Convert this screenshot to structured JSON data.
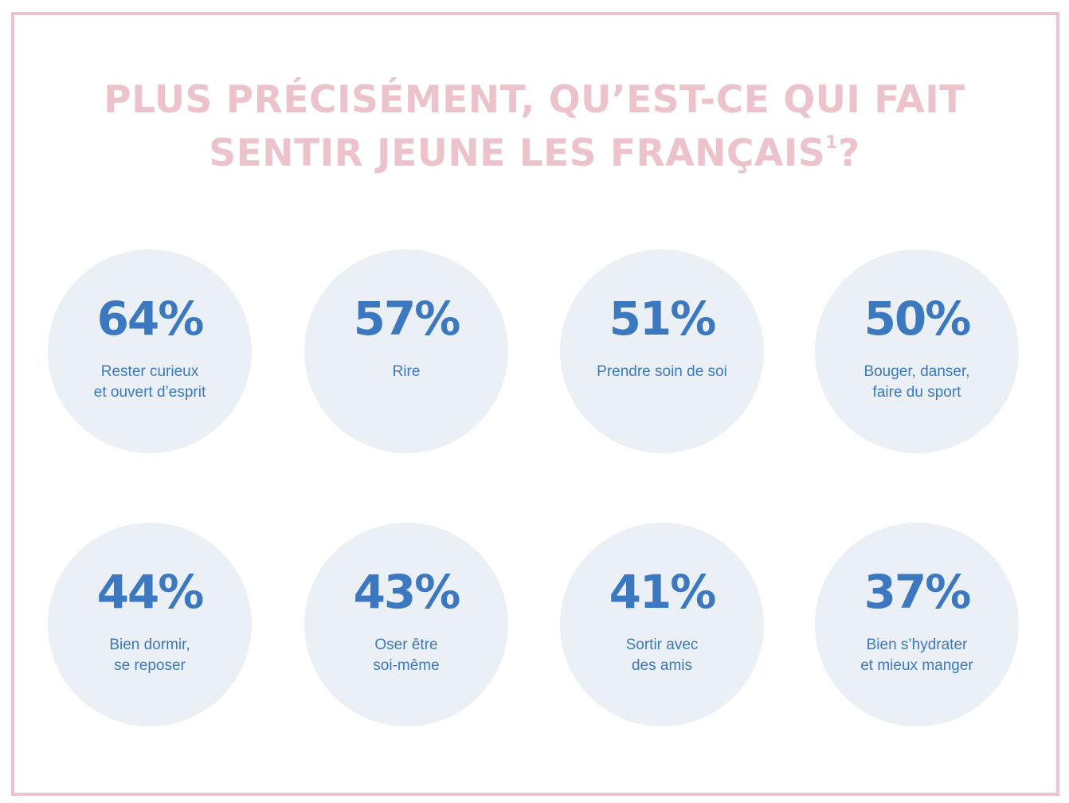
{
  "title": {
    "line1": "PLUS PRÉCISÉMENT, QU’EST-CE QUI FAIT",
    "line2": "SENTIR JEUNE LES FRANÇAIS",
    "superscript": "1",
    "end": "?"
  },
  "colors": {
    "title": "#ecc3cb",
    "border": "#ecc3cb",
    "circle": "#eaf0f6",
    "text": "#3b78c0"
  },
  "chart_data": {
    "type": "table",
    "unit": "%",
    "items": [
      {
        "value": 64,
        "value_text": "64%",
        "label_lines": [
          "Rester curieux",
          "et ouvert d’esprit"
        ]
      },
      {
        "value": 57,
        "value_text": "57%",
        "label_lines": [
          "Rire"
        ]
      },
      {
        "value": 51,
        "value_text": "51%",
        "label_lines": [
          "Prendre soin de soi"
        ]
      },
      {
        "value": 50,
        "value_text": "50%",
        "label_lines": [
          "Bouger, danser,",
          "faire du sport"
        ]
      },
      {
        "value": 44,
        "value_text": "44%",
        "label_lines": [
          "Bien dormir,",
          "se reposer"
        ]
      },
      {
        "value": 43,
        "value_text": "43%",
        "label_lines": [
          "Oser être",
          "soi-même"
        ]
      },
      {
        "value": 41,
        "value_text": "41%",
        "label_lines": [
          "Sortir avec",
          "des amis"
        ]
      },
      {
        "value": 37,
        "value_text": "37%",
        "label_lines": [
          "Bien s’hydrater",
          "et mieux manger"
        ]
      }
    ]
  }
}
